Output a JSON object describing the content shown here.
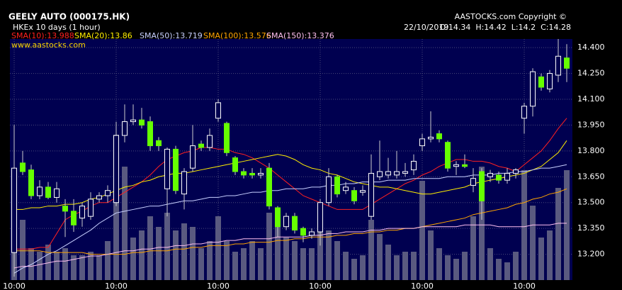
{
  "chart_data": {
    "type": "candlestick",
    "title": "GEELY AUTO (000175.HK)",
    "subtitle": "HKEx 10 days (1 hour)",
    "copyright": "AASTOCKS.com Copyright ©",
    "website": "www.aastocks.com",
    "date": "22/10/2019",
    "quote": "O:14.34  H:14.42  L:14.2  C:14.28",
    "categories": [
      "10:00",
      null,
      null,
      null,
      null,
      null,
      null,
      null,
      null,
      null,
      null,
      null,
      "10:00",
      null,
      null,
      null,
      null,
      null,
      null,
      null,
      null,
      null,
      null,
      null,
      "10:00",
      null,
      null,
      null,
      null,
      null,
      null,
      null,
      null,
      null,
      null,
      null,
      "10:00",
      null,
      null,
      null,
      null,
      null,
      null,
      null,
      null,
      null,
      null,
      null,
      "10:00",
      null,
      null,
      null,
      null,
      null,
      null,
      null,
      null,
      null,
      null,
      null,
      "10:00",
      null,
      null,
      null,
      null,
      null
    ],
    "open": [
      13.21,
      13.73,
      13.69,
      13.54,
      13.59,
      13.53,
      13.48,
      13.45,
      13.41,
      13.42,
      13.52,
      13.54,
      13.5,
      13.89,
      13.97,
      13.98,
      13.97,
      13.86,
      13.58,
      13.81,
      13.55,
      13.7,
      13.84,
      13.82,
      13.99,
      13.96,
      13.76,
      13.68,
      13.67,
      13.66,
      13.7,
      13.47,
      13.36,
      13.42,
      13.35,
      13.31,
      13.33,
      13.5,
      13.65,
      13.57,
      13.57,
      13.56,
      13.42,
      13.65,
      13.66,
      13.66,
      13.67,
      13.69,
      13.83,
      13.87,
      13.9,
      13.85,
      13.71,
      13.72,
      13.6,
      13.68,
      13.65,
      13.66,
      13.63,
      13.67,
      13.99,
      14.06,
      14.23,
      14.16,
      14.24,
      14.34
    ],
    "high": [
      13.95,
      13.8,
      13.72,
      13.63,
      13.62,
      13.62,
      13.52,
      13.52,
      13.5,
      13.56,
      13.56,
      13.6,
      13.97,
      14.07,
      14.07,
      14.05,
      14.0,
      13.88,
      13.82,
      13.83,
      13.7,
      13.95,
      13.86,
      13.93,
      14.1,
      13.97,
      13.77,
      13.7,
      13.7,
      13.7,
      13.73,
      13.48,
      13.44,
      13.44,
      13.36,
      13.35,
      13.52,
      13.7,
      13.66,
      13.62,
      13.59,
      13.6,
      13.78,
      13.86,
      13.76,
      13.8,
      13.73,
      13.78,
      13.9,
      14.03,
      13.92,
      13.86,
      13.74,
      13.78,
      13.7,
      13.7,
      13.69,
      13.68,
      13.7,
      13.7,
      14.08,
      14.28,
      14.25,
      14.27,
      14.45,
      14.42
    ],
    "low": [
      13.07,
      13.66,
      13.52,
      13.52,
      13.52,
      13.5,
      13.3,
      13.33,
      13.36,
      13.4,
      13.5,
      13.5,
      13.48,
      13.85,
      13.95,
      13.93,
      13.8,
      13.8,
      13.42,
      13.55,
      13.46,
      13.68,
      13.8,
      13.8,
      13.97,
      13.77,
      13.66,
      13.64,
      13.64,
      13.64,
      13.46,
      13.3,
      13.34,
      13.32,
      13.27,
      13.29,
      13.25,
      13.48,
      13.53,
      13.55,
      13.49,
      13.54,
      13.4,
      13.63,
      13.64,
      13.64,
      13.65,
      13.66,
      13.8,
      13.85,
      13.85,
      13.68,
      13.66,
      13.7,
      13.56,
      13.4,
      13.62,
      13.61,
      13.61,
      13.64,
      13.9,
      14.0,
      14.15,
      14.14,
      14.2,
      14.2
    ],
    "close": [
      13.7,
      13.68,
      13.54,
      13.59,
      13.53,
      13.58,
      13.45,
      13.37,
      13.48,
      13.52,
      13.54,
      13.57,
      13.89,
      13.97,
      13.98,
      13.95,
      13.83,
      13.83,
      13.81,
      13.57,
      13.68,
      13.83,
      13.82,
      13.89,
      14.08,
      13.79,
      13.68,
      13.66,
      13.66,
      13.67,
      13.48,
      13.36,
      13.42,
      13.34,
      13.31,
      13.33,
      13.5,
      13.65,
      13.55,
      13.59,
      13.51,
      13.57,
      13.67,
      13.68,
      13.68,
      13.68,
      13.68,
      13.74,
      13.87,
      13.88,
      13.87,
      13.7,
      13.72,
      13.71,
      13.64,
      13.51,
      13.67,
      13.63,
      13.67,
      13.69,
      14.06,
      14.26,
      14.17,
      14.25,
      14.35,
      14.28
    ],
    "up_color": "#ffffff",
    "down_color": "#66ff00",
    "volume_color": "#5a5a80",
    "volume": [
      60,
      85,
      45,
      40,
      50,
      40,
      45,
      35,
      35,
      40,
      35,
      55,
      205,
      160,
      60,
      70,
      90,
      75,
      95,
      70,
      80,
      75,
      45,
      55,
      90,
      55,
      40,
      45,
      55,
      45,
      95,
      80,
      60,
      55,
      45,
      45,
      100,
      70,
      55,
      40,
      30,
      35,
      85,
      65,
      50,
      35,
      40,
      40,
      140,
      70,
      45,
      35,
      30,
      40,
      90,
      160,
      45,
      30,
      25,
      40,
      155,
      105,
      60,
      70,
      130,
      155
    ],
    "volume_ylim": [
      0,
      340
    ],
    "series": [
      {
        "name": "SMA(10):13.988",
        "color": "#ff2020",
        "values": [
          13.23,
          13.23,
          13.23,
          13.24,
          13.24,
          13.32,
          13.4,
          13.43,
          13.45,
          13.48,
          13.5,
          13.5,
          13.53,
          13.56,
          13.59,
          13.62,
          13.66,
          13.71,
          13.75,
          13.77,
          13.79,
          13.8,
          13.82,
          13.82,
          13.81,
          13.81,
          13.79,
          13.78,
          13.76,
          13.73,
          13.7,
          13.66,
          13.62,
          13.58,
          13.54,
          13.52,
          13.5,
          13.48,
          13.46,
          13.46,
          13.46,
          13.46,
          13.49,
          13.52,
          13.55,
          13.58,
          13.61,
          13.63,
          13.66,
          13.68,
          13.71,
          13.73,
          13.75,
          13.75,
          13.74,
          13.74,
          13.73,
          13.71,
          13.7,
          13.68,
          13.72,
          13.76,
          13.8,
          13.86,
          13.93,
          13.99
        ]
      },
      {
        "name": "SMA(20):13.86",
        "color": "#ffee00",
        "values": [
          13.46,
          13.46,
          13.47,
          13.47,
          13.48,
          13.48,
          13.49,
          13.49,
          13.5,
          13.52,
          13.53,
          13.55,
          13.57,
          13.59,
          13.6,
          13.62,
          13.63,
          13.65,
          13.66,
          13.67,
          13.67,
          13.68,
          13.69,
          13.7,
          13.71,
          13.72,
          13.73,
          13.74,
          13.75,
          13.76,
          13.77,
          13.78,
          13.77,
          13.75,
          13.72,
          13.7,
          13.69,
          13.67,
          13.66,
          13.64,
          13.62,
          13.61,
          13.6,
          13.59,
          13.59,
          13.58,
          13.57,
          13.56,
          13.55,
          13.55,
          13.56,
          13.57,
          13.58,
          13.59,
          13.61,
          13.62,
          13.63,
          13.64,
          13.65,
          13.66,
          13.67,
          13.69,
          13.71,
          13.75,
          13.79,
          13.86
        ]
      },
      {
        "name": "SMA(50):13.719",
        "color": "#c8d0ff",
        "values": [
          13.09,
          13.12,
          13.14,
          13.17,
          13.2,
          13.22,
          13.25,
          13.28,
          13.31,
          13.34,
          13.38,
          13.41,
          13.44,
          13.45,
          13.46,
          13.47,
          13.48,
          13.48,
          13.49,
          13.5,
          13.51,
          13.51,
          13.52,
          13.53,
          13.53,
          13.54,
          13.54,
          13.55,
          13.56,
          13.56,
          13.57,
          13.57,
          13.58,
          13.58,
          13.58,
          13.59,
          13.59,
          13.6,
          13.6,
          13.61,
          13.61,
          13.62,
          13.62,
          13.62,
          13.63,
          13.63,
          13.63,
          13.64,
          13.64,
          13.64,
          13.64,
          13.65,
          13.65,
          13.65,
          13.66,
          13.66,
          13.66,
          13.67,
          13.67,
          13.68,
          13.68,
          13.69,
          13.7,
          13.7,
          13.71,
          13.72
        ]
      },
      {
        "name": "SMA(100):13.576",
        "color": "#ffa500",
        "values": [
          13.22,
          13.22,
          13.22,
          13.22,
          13.21,
          13.21,
          13.21,
          13.21,
          13.21,
          13.2,
          13.2,
          13.2,
          13.2,
          13.2,
          13.21,
          13.21,
          13.22,
          13.22,
          13.22,
          13.23,
          13.23,
          13.24,
          13.24,
          13.25,
          13.25,
          13.25,
          13.26,
          13.26,
          13.27,
          13.27,
          13.27,
          13.28,
          13.28,
          13.29,
          13.29,
          13.3,
          13.3,
          13.3,
          13.31,
          13.31,
          13.32,
          13.32,
          13.33,
          13.33,
          13.34,
          13.34,
          13.35,
          13.35,
          13.36,
          13.37,
          13.38,
          13.39,
          13.4,
          13.41,
          13.43,
          13.44,
          13.45,
          13.46,
          13.47,
          13.49,
          13.5,
          13.52,
          13.53,
          13.55,
          13.56,
          13.58
        ]
      },
      {
        "name": "SMA(150):13.376",
        "color": "#ffc0f0",
        "values": [
          13.12,
          13.13,
          13.13,
          13.14,
          13.15,
          13.16,
          13.16,
          13.17,
          13.18,
          13.19,
          13.19,
          13.2,
          13.21,
          13.22,
          13.22,
          13.23,
          13.23,
          13.24,
          13.24,
          13.25,
          13.25,
          13.26,
          13.26,
          13.27,
          13.27,
          13.28,
          13.28,
          13.29,
          13.29,
          13.29,
          13.29,
          13.3,
          13.3,
          13.3,
          13.3,
          13.31,
          13.31,
          13.32,
          13.32,
          13.33,
          13.33,
          13.33,
          13.34,
          13.34,
          13.35,
          13.35,
          13.35,
          13.35,
          13.36,
          13.36,
          13.36,
          13.36,
          13.36,
          13.37,
          13.37,
          13.37,
          13.37,
          13.36,
          13.36,
          13.36,
          13.36,
          13.37,
          13.37,
          13.37,
          13.38,
          13.38
        ]
      }
    ],
    "ylim": [
      13.05,
      14.45
    ],
    "yticks": [
      {
        "value": 14.4,
        "label": "14.400"
      },
      {
        "value": 14.25,
        "label": "14.250"
      },
      {
        "value": 14.1,
        "label": "14.100"
      },
      {
        "value": 13.95,
        "label": "13.950"
      },
      {
        "value": 13.8,
        "label": "13.800"
      },
      {
        "value": 13.65,
        "label": "13.650"
      },
      {
        "value": 13.5,
        "label": "13.500"
      },
      {
        "value": 13.35,
        "label": "13.350"
      },
      {
        "value": 13.2,
        "label": "13.200"
      }
    ],
    "grid": true
  }
}
